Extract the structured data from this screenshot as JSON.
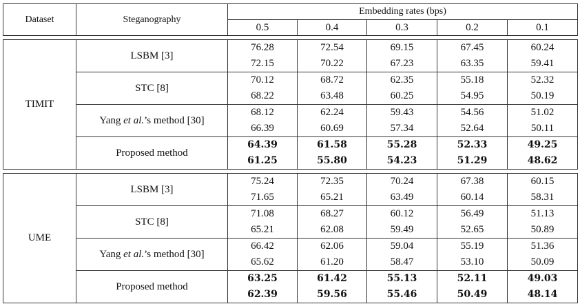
{
  "headers": {
    "dataset": "Dataset",
    "steganography": "Steganography",
    "rates_title": "Embedding rates (bps)",
    "rates": [
      "0.5",
      "0.4",
      "0.3",
      "0.2",
      "0.1"
    ]
  },
  "groups": [
    {
      "name": "TIMIT",
      "methods": [
        {
          "pre": "LSBM [3]",
          "em": "",
          "post": "",
          "bold": false,
          "rows": [
            [
              "76.28",
              "72.54",
              "69.15",
              "67.45",
              "60.24"
            ],
            [
              "72.15",
              "70.22",
              "67.23",
              "63.35",
              "59.41"
            ]
          ]
        },
        {
          "pre": "STC [8]",
          "em": "",
          "post": "",
          "bold": false,
          "rows": [
            [
              "70.12",
              "68.72",
              "62.35",
              "55.18",
              "52.32"
            ],
            [
              "68.22",
              "63.48",
              "60.25",
              "54.95",
              "50.19"
            ]
          ]
        },
        {
          "pre": "Yang ",
          "em": "et al.",
          "post": "’s method [30]",
          "bold": false,
          "rows": [
            [
              "68.12",
              "62.24",
              "59.43",
              "54.56",
              "51.02"
            ],
            [
              "66.39",
              "60.69",
              "57.34",
              "52.64",
              "50.11"
            ]
          ]
        },
        {
          "pre": "Proposed method",
          "em": "",
          "post": "",
          "bold": true,
          "rows": [
            [
              "64.39",
              "61.58",
              "55.28",
              "52.33",
              "49.25"
            ],
            [
              "61.25",
              "55.80",
              "54.23",
              "51.29",
              "48.62"
            ]
          ]
        }
      ]
    },
    {
      "name": "UME",
      "methods": [
        {
          "pre": "LSBM [3]",
          "em": "",
          "post": "",
          "bold": false,
          "rows": [
            [
              "75.24",
              "72.35",
              "70.24",
              "67.38",
              "60.15"
            ],
            [
              "71.65",
              "65.21",
              "63.49",
              "60.14",
              "58.31"
            ]
          ]
        },
        {
          "pre": "STC [8]",
          "em": "",
          "post": "",
          "bold": false,
          "rows": [
            [
              "71.08",
              "68.27",
              "60.12",
              "56.49",
              "51.13"
            ],
            [
              "65.21",
              "62.08",
              "59.49",
              "52.65",
              "50.89"
            ]
          ]
        },
        {
          "pre": "Yang ",
          "em": "et al.",
          "post": "’s method [30]",
          "bold": false,
          "rows": [
            [
              "66.42",
              "62.06",
              "59.04",
              "55.19",
              "51.36"
            ],
            [
              "65.62",
              "61.20",
              "58.47",
              "53.10",
              "50.09"
            ]
          ]
        },
        {
          "pre": "Proposed method",
          "em": "",
          "post": "",
          "bold": true,
          "rows": [
            [
              "63.25",
              "61.42",
              "55.13",
              "52.11",
              "49.03"
            ],
            [
              "62.39",
              "59.56",
              "55.46",
              "50.49",
              "48.14"
            ]
          ]
        }
      ]
    }
  ]
}
